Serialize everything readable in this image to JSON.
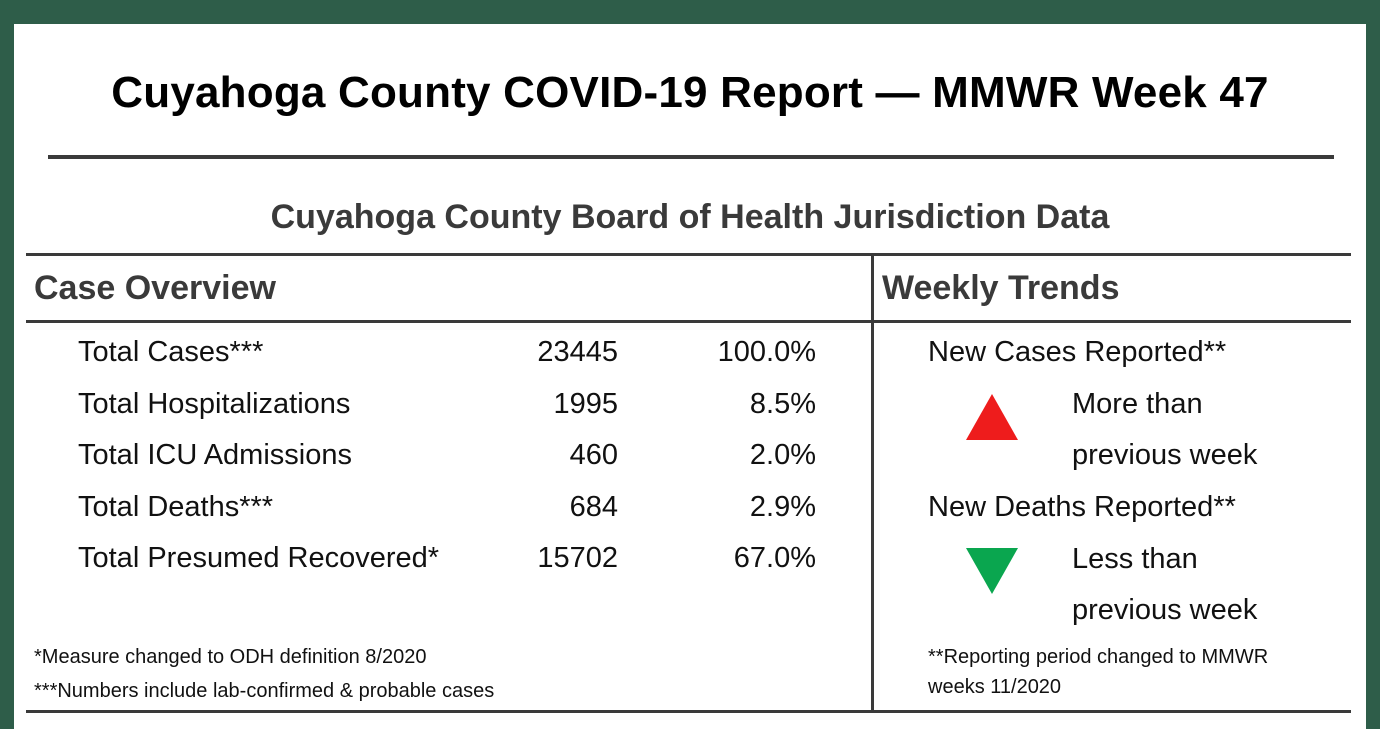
{
  "report": {
    "title": "Cuyahoga County COVID-19 Report — MMWR Week 47",
    "subtitle": "Cuyahoga County Board of Health Jurisdiction Data"
  },
  "case_overview": {
    "heading": "Case Overview",
    "rows": [
      {
        "label": "Total Cases***",
        "count": "23445",
        "pct": "100.0%"
      },
      {
        "label": "Total Hospitalizations",
        "count": "1995",
        "pct": "8.5%"
      },
      {
        "label": "Total ICU Admissions",
        "count": "460",
        "pct": "2.0%"
      },
      {
        "label": "Total Deaths***",
        "count": "684",
        "pct": "2.9%"
      },
      {
        "label": "Total Presumed Recovered*",
        "count": "15702",
        "pct": "67.0%"
      }
    ],
    "notes": [
      "*Measure changed to ODH  definition 8/2020",
      "***Numbers include lab-confirmed & probable cases"
    ]
  },
  "weekly_trends": {
    "heading": "Weekly Trends",
    "items": [
      {
        "label": "New Cases Reported**",
        "description": "More than previous week",
        "direction": "up",
        "color": "#ee1c1c"
      },
      {
        "label": "New Deaths Reported**",
        "description": "Less than previous week",
        "direction": "down",
        "color": "#0aa64f"
      }
    ],
    "note": "**Reporting period changed to MMWR weeks 11/2020"
  }
}
